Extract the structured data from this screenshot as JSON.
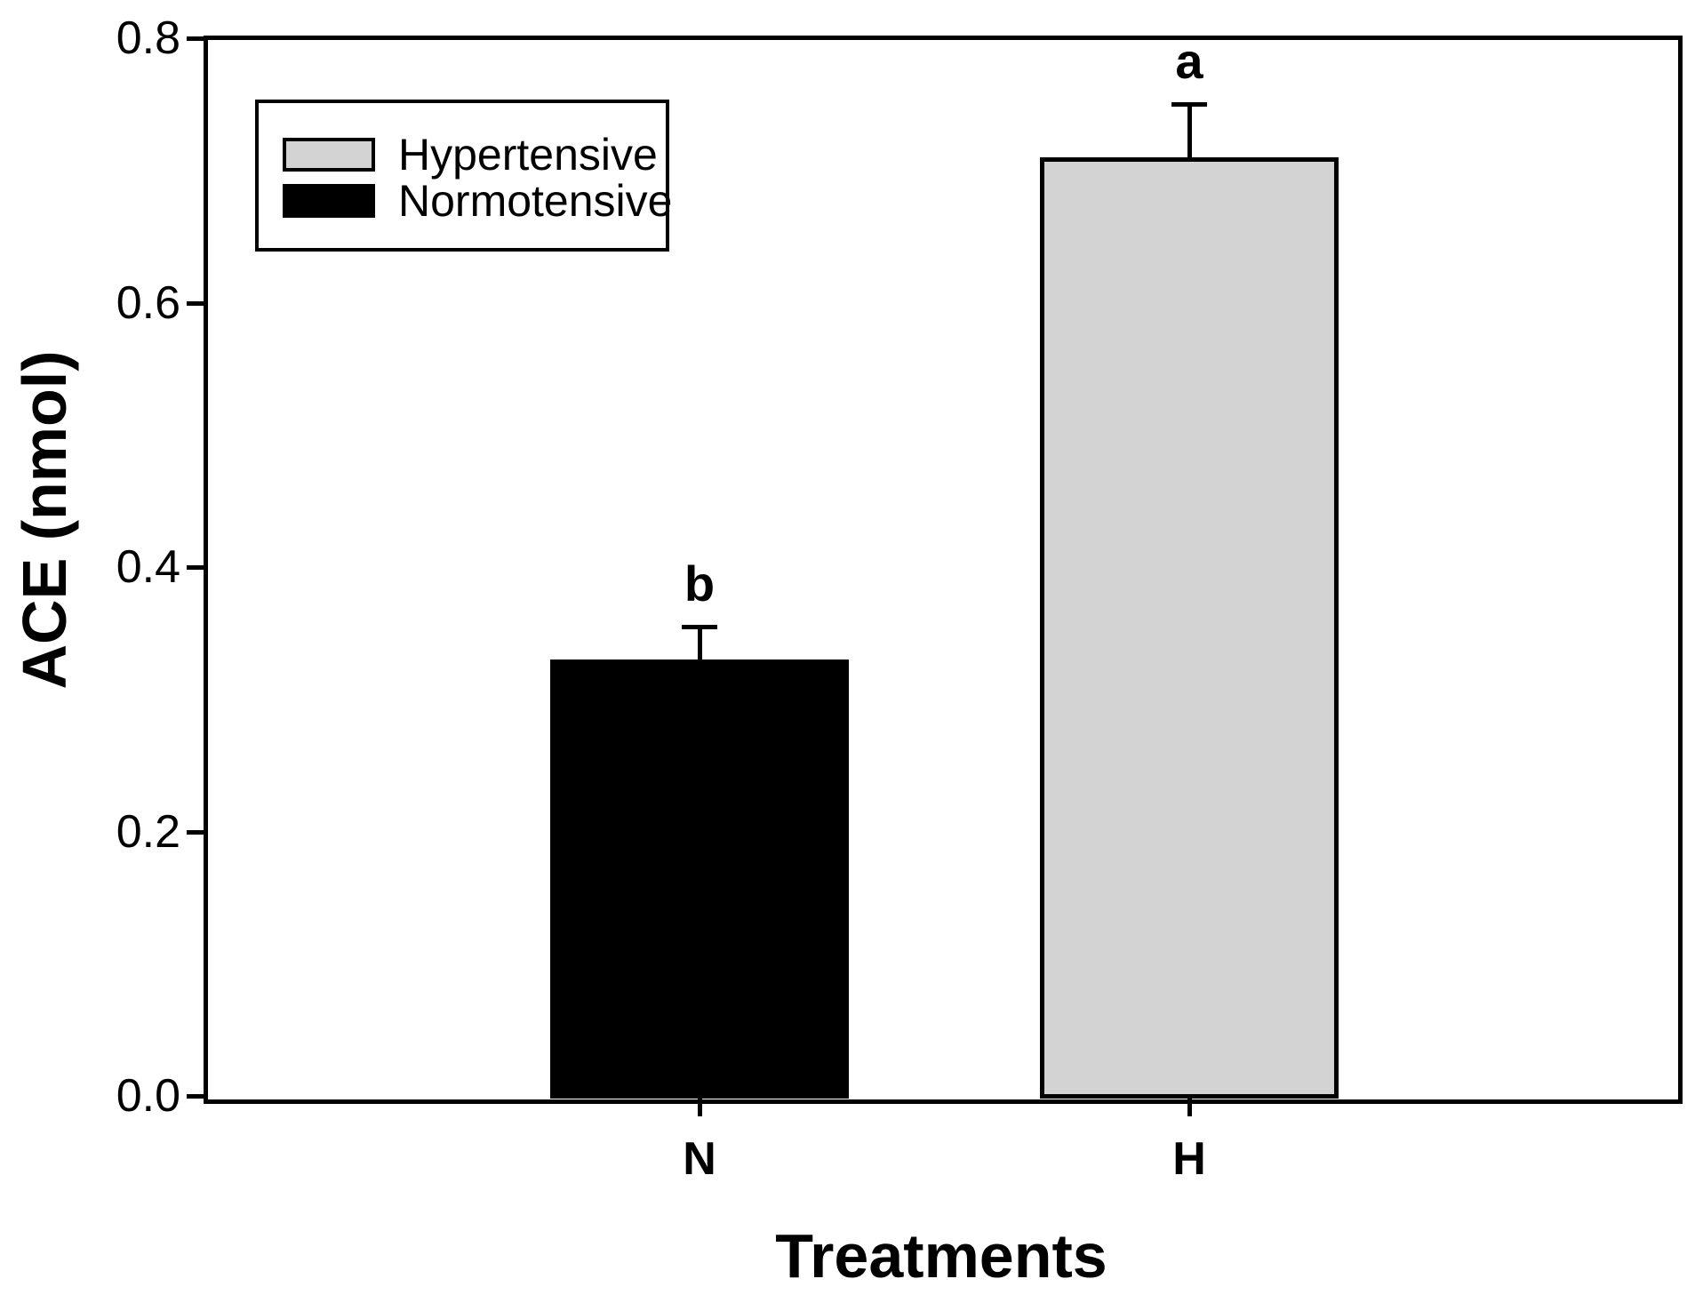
{
  "axes": {
    "x_title": "Treatments",
    "y_title": "ACE (nmol)"
  },
  "legend": {
    "items": [
      {
        "label": "Hypertensive",
        "color": "#d3d3d3"
      },
      {
        "label": "Normotensive",
        "color": "#000000"
      }
    ]
  },
  "chart_data": {
    "type": "bar",
    "title": "",
    "xlabel": "Treatments",
    "ylabel": "ACE (nmol)",
    "ylim": [
      0,
      0.8
    ],
    "yticks": [
      "0.0",
      "0.2",
      "0.4",
      "0.6",
      "0.8"
    ],
    "categories": [
      "N",
      "H"
    ],
    "series": [
      {
        "name": "Normotensive",
        "category": "N",
        "value": 0.33,
        "error": 0.025,
        "sig_label": "b",
        "color": "#000000"
      },
      {
        "name": "Hypertensive",
        "category": "H",
        "value": 0.71,
        "error": 0.04,
        "sig_label": "a",
        "color": "#d3d3d3"
      }
    ],
    "legend_position": "upper-left",
    "grid": false,
    "error_bars": "upper with cap",
    "frame": "closed box"
  }
}
